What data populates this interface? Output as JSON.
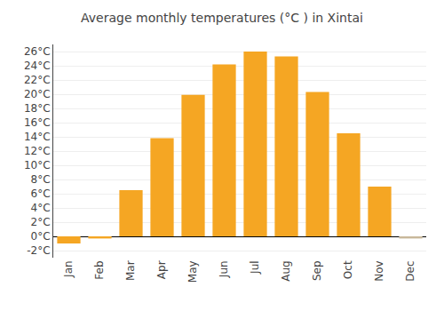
{
  "chart_data": {
    "type": "bar",
    "title": "Average monthly temperatures (°C ) in Xintai",
    "categories": [
      "Jan",
      "Feb",
      "Mar",
      "Apr",
      "May",
      "Jun",
      "Jul",
      "Aug",
      "Sep",
      "Oct",
      "Nov",
      "Dec"
    ],
    "values": [
      -1.0,
      -0.3,
      6.5,
      13.8,
      19.9,
      24.2,
      26.0,
      25.3,
      20.3,
      14.5,
      7.0,
      -0.3
    ],
    "colors": [
      "#F5A623",
      "#F5A623",
      "#F5A623",
      "#F5A623",
      "#F5A623",
      "#F5A623",
      "#F5A623",
      "#F5A623",
      "#F5A623",
      "#F5A623",
      "#F5A623",
      "#C8B89A"
    ],
    "ylim": [
      -3,
      27
    ],
    "yticks": [
      {
        "value": -2,
        "label": "-2°C"
      },
      {
        "value": 0,
        "label": "0°C"
      },
      {
        "value": 2,
        "label": "2°C"
      },
      {
        "value": 4,
        "label": "4°C"
      },
      {
        "value": 6,
        "label": "6°C"
      },
      {
        "value": 8,
        "label": "8°C"
      },
      {
        "value": 10,
        "label": "10°C"
      },
      {
        "value": 12,
        "label": "12°C"
      },
      {
        "value": 14,
        "label": "14°C"
      },
      {
        "value": 16,
        "label": "16°C"
      },
      {
        "value": 18,
        "label": "18°C"
      },
      {
        "value": 20,
        "label": "20°C"
      },
      {
        "value": 22,
        "label": "22°C"
      },
      {
        "value": 24,
        "label": "24°C"
      },
      {
        "value": 26,
        "label": "26°C"
      }
    ],
    "grid": true
  }
}
